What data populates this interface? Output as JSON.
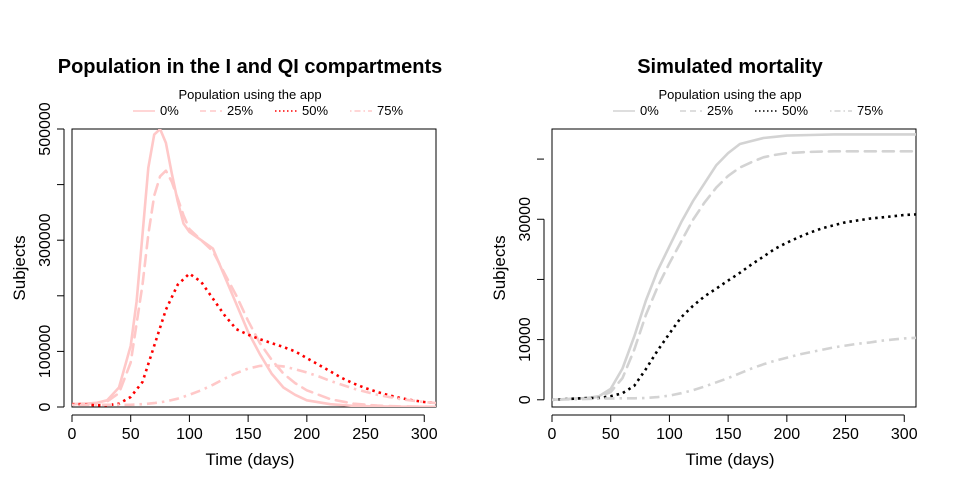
{
  "chart_data": [
    {
      "type": "line",
      "title": "Population in the I and QI compartments",
      "legend_title": "Population using the app",
      "legend_placement": "top",
      "xlabel": "Time (days)",
      "ylabel": "Subjects",
      "xlim": [
        0,
        310
      ],
      "ylim": [
        0,
        500000
      ],
      "xticks": [
        0,
        50,
        100,
        150,
        200,
        250,
        300
      ],
      "yticks": [
        0,
        100000,
        300000,
        500000
      ],
      "ytick_labels": [
        "0",
        "100000",
        "300000",
        "500000"
      ],
      "grid": false,
      "series": [
        {
          "name": "0%",
          "color": "#FFC8C8",
          "dash": "solid",
          "x": [
            0,
            10,
            20,
            30,
            40,
            50,
            55,
            60,
            65,
            70,
            75,
            80,
            85,
            90,
            95,
            100,
            110,
            120,
            130,
            140,
            150,
            160,
            170,
            180,
            190,
            200,
            220,
            240,
            260,
            280,
            300,
            310
          ],
          "y": [
            5000,
            6000,
            7000,
            12000,
            35000,
            110000,
            190000,
            310000,
            430000,
            490000,
            500000,
            475000,
            420000,
            370000,
            330000,
            315000,
            300000,
            285000,
            235000,
            185000,
            135000,
            95000,
            60000,
            35000,
            22000,
            12000,
            5000,
            2000,
            1000,
            500,
            300,
            200
          ]
        },
        {
          "name": "25%",
          "color": "#FFC8C8",
          "dash": "dashed",
          "x": [
            0,
            10,
            20,
            30,
            40,
            50,
            60,
            65,
            70,
            75,
            80,
            85,
            90,
            95,
            100,
            110,
            120,
            130,
            140,
            150,
            160,
            170,
            180,
            190,
            200,
            220,
            240,
            260,
            280,
            300,
            310
          ],
          "y": [
            5000,
            6000,
            7000,
            10000,
            25000,
            80000,
            220000,
            310000,
            380000,
            415000,
            425000,
            405000,
            375000,
            345000,
            320000,
            300000,
            280000,
            240000,
            200000,
            155000,
            115000,
            85000,
            60000,
            43000,
            30000,
            14000,
            6000,
            2500,
            1000,
            500,
            300
          ]
        },
        {
          "name": "50%",
          "color": "#FF0000",
          "dash": "dotted",
          "x": [
            0,
            10,
            20,
            30,
            40,
            50,
            60,
            70,
            80,
            90,
            100,
            110,
            120,
            130,
            140,
            150,
            160,
            170,
            180,
            190,
            200,
            210,
            220,
            230,
            240,
            250,
            260,
            270,
            280,
            290,
            300,
            310
          ],
          "y": [
            5000,
            5000,
            3000,
            3000,
            6000,
            18000,
            45000,
            110000,
            175000,
            220000,
            240000,
            225000,
            195000,
            165000,
            140000,
            130000,
            122000,
            115000,
            108000,
            100000,
            88000,
            76000,
            64000,
            52000,
            42000,
            34000,
            27000,
            21000,
            16000,
            12000,
            9000,
            7000
          ]
        },
        {
          "name": "75%",
          "color": "#FFC8C8",
          "dash": "dotdash",
          "x": [
            0,
            10,
            20,
            30,
            40,
            50,
            60,
            70,
            80,
            90,
            100,
            110,
            120,
            130,
            140,
            150,
            160,
            170,
            180,
            190,
            200,
            210,
            220,
            240,
            260,
            280,
            300,
            310
          ],
          "y": [
            4000,
            4000,
            4000,
            4000,
            4000,
            4000,
            5000,
            7000,
            10000,
            15000,
            22000,
            30000,
            40000,
            51000,
            61000,
            69000,
            74000,
            75000,
            73000,
            68000,
            62000,
            55000,
            47000,
            33000,
            22000,
            14000,
            9000,
            7000
          ]
        }
      ]
    },
    {
      "type": "line",
      "title": "Simulated mortality",
      "legend_title": "Population using the app",
      "legend_placement": "top",
      "xlabel": "Time (days)",
      "ylabel": "Subjects",
      "xlim": [
        0,
        310
      ],
      "ylim": [
        -1200,
        45000
      ],
      "xticks": [
        0,
        50,
        100,
        150,
        200,
        250,
        300
      ],
      "yticks": [
        0,
        10000,
        30000
      ],
      "ytick_labels": [
        "0",
        "10000",
        "30000"
      ],
      "grid": false,
      "series": [
        {
          "name": "0%",
          "color": "#D3D3D3",
          "dash": "solid",
          "x": [
            0,
            10,
            20,
            30,
            40,
            50,
            60,
            70,
            80,
            90,
            100,
            110,
            120,
            130,
            140,
            150,
            160,
            170,
            180,
            190,
            200,
            220,
            240,
            260,
            280,
            300,
            310
          ],
          "y": [
            0,
            100,
            200,
            300,
            600,
            1800,
            5200,
            10500,
            16500,
            21500,
            25500,
            29500,
            33000,
            36000,
            39000,
            41000,
            42500,
            43000,
            43500,
            43700,
            43900,
            44000,
            44100,
            44100,
            44100,
            44100,
            44100
          ]
        },
        {
          "name": "25%",
          "color": "#D3D3D3",
          "dash": "dashed",
          "x": [
            0,
            10,
            20,
            30,
            40,
            50,
            60,
            70,
            80,
            90,
            100,
            110,
            120,
            130,
            140,
            150,
            160,
            170,
            180,
            190,
            200,
            220,
            240,
            260,
            280,
            300,
            310
          ],
          "y": [
            0,
            100,
            200,
            300,
            500,
            1300,
            3600,
            8300,
            14100,
            18800,
            22700,
            26300,
            29900,
            32800,
            35300,
            37200,
            38600,
            39500,
            40300,
            40700,
            41000,
            41200,
            41300,
            41300,
            41300,
            41300,
            41300
          ]
        },
        {
          "name": "50%",
          "color": "#000000",
          "dash": "dotted",
          "x": [
            0,
            10,
            20,
            30,
            40,
            50,
            60,
            70,
            80,
            90,
            100,
            110,
            120,
            130,
            140,
            150,
            160,
            170,
            180,
            190,
            200,
            210,
            220,
            230,
            240,
            250,
            260,
            270,
            280,
            290,
            300,
            310
          ],
          "y": [
            0,
            100,
            200,
            300,
            300,
            600,
            1100,
            2300,
            5100,
            8200,
            11000,
            13700,
            15600,
            17200,
            18500,
            19800,
            21100,
            22500,
            23800,
            25100,
            26100,
            27000,
            27800,
            28500,
            29000,
            29500,
            29800,
            30100,
            30300,
            30500,
            30700,
            30800
          ]
        },
        {
          "name": "75%",
          "color": "#D3D3D3",
          "dash": "dotdash",
          "x": [
            0,
            20,
            40,
            60,
            70,
            80,
            90,
            100,
            110,
            120,
            130,
            140,
            150,
            160,
            170,
            180,
            190,
            200,
            210,
            220,
            230,
            240,
            250,
            260,
            270,
            280,
            290,
            300,
            310
          ],
          "y": [
            0,
            100,
            200,
            250,
            250,
            300,
            450,
            700,
            1100,
            1600,
            2200,
            2900,
            3600,
            4400,
            5200,
            5900,
            6500,
            7000,
            7500,
            7900,
            8300,
            8700,
            9000,
            9300,
            9500,
            9800,
            10000,
            10200,
            10300
          ]
        }
      ]
    }
  ]
}
